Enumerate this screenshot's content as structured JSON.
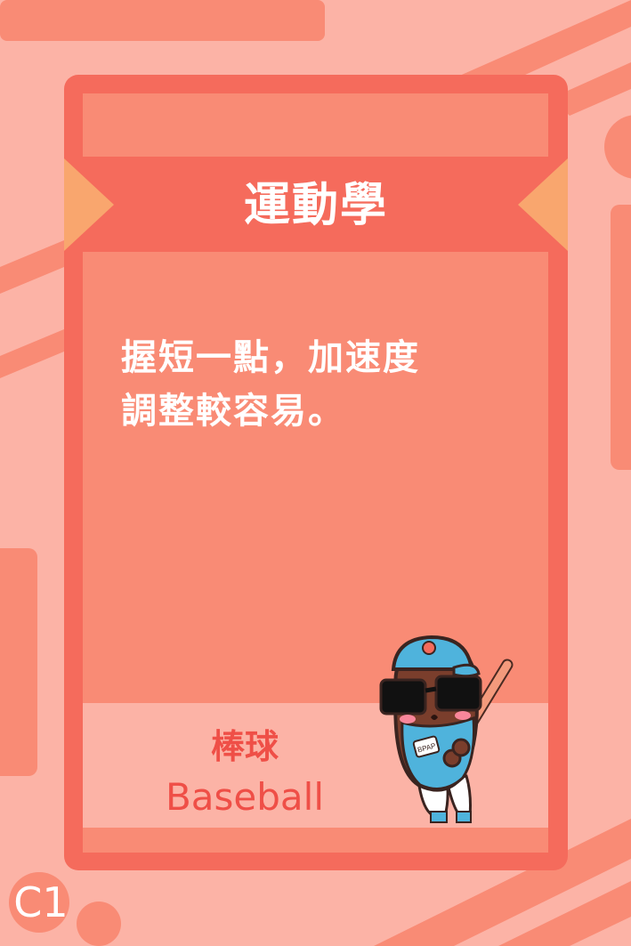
{
  "card": {
    "category_title": "運動學",
    "tip_lines": [
      "握短一點，加速度",
      "調整較容易。"
    ],
    "sport_name_zh": "棒球",
    "sport_name_en": "Baseball",
    "card_code": "C1"
  },
  "mascot": {
    "icon": "baseball-player-mascot-icon",
    "jersey_text": "BPAP"
  },
  "colors": {
    "background": "#fcb3a6",
    "card_frame": "#f56b5c",
    "card_fill": "#f98b75",
    "ribbon_tips": "#f9a66e",
    "sport_text": "#ef4f47"
  }
}
